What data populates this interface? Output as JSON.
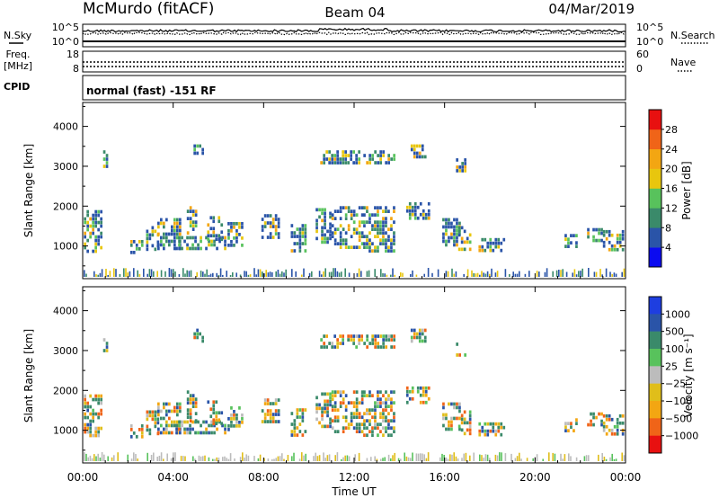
{
  "header": {
    "station": "McMurdo (fitACF)",
    "beam": "Beam 04",
    "date": "04/Mar/2019"
  },
  "noise_panel": {
    "left_label": "N.Sky",
    "right_label": "N.Search",
    "left_ticks": [
      "10^5",
      "10^0"
    ],
    "right_ticks": [
      "10^5",
      "10^0"
    ]
  },
  "freq_panel": {
    "left_label_1": "Freq.",
    "left_label_2": "[MHz]",
    "right_label": "Nave",
    "left_ticks": [
      "18",
      "8"
    ],
    "right_ticks": [
      "60",
      "0"
    ]
  },
  "cpid_panel": {
    "label": "CPID",
    "mode": "normal (fast) -151 RF"
  },
  "x_axis": {
    "label": "Time UT",
    "ticks": [
      "00:00",
      "04:00",
      "08:00",
      "12:00",
      "16:00",
      "20:00",
      "00:00"
    ]
  },
  "colors": {
    "scale_colors": [
      "#0b0bf0",
      "#2a54a8",
      "#3a8a6a",
      "#58c25c",
      "#e8c60e",
      "#f3a612",
      "#f06418",
      "#e81010"
    ],
    "velocity_colors": [
      "#e81010",
      "#f06418",
      "#f3a612",
      "#e0be1a",
      "#bcbcbc",
      "#58c25c",
      "#3a8a6a",
      "#2a54a8",
      "#1e3ee0"
    ]
  },
  "chart_data": [
    {
      "type": "heatmap",
      "title": "",
      "xlabel": "Time UT",
      "ylabel": "Slant Range [km]",
      "x_range_hours": [
        0,
        24
      ],
      "ylim": [
        180,
        4600
      ],
      "y_ticks": [
        1000,
        2000,
        3000,
        4000
      ],
      "colorbar": {
        "label": "Power [dB]",
        "ticks": [
          "4",
          "8",
          "12",
          "16",
          "20",
          "24",
          "28"
        ],
        "range": [
          0,
          32
        ]
      },
      "echo_regions": [
        {
          "t0": 0.05,
          "t1": 0.8,
          "r0": 850,
          "r1": 1900
        },
        {
          "t0": 2.1,
          "t1": 2.6,
          "r0": 850,
          "r1": 1150
        },
        {
          "t0": 2.8,
          "t1": 3.3,
          "r0": 950,
          "r1": 1500
        },
        {
          "t0": 3.3,
          "t1": 4.3,
          "r0": 900,
          "r1": 1700
        },
        {
          "t0": 4.1,
          "t1": 6.3,
          "r0": 950,
          "r1": 1250
        },
        {
          "t0": 4.6,
          "t1": 5.0,
          "r0": 1200,
          "r1": 2000
        },
        {
          "t0": 5.5,
          "t1": 6.2,
          "r0": 1150,
          "r1": 1750
        },
        {
          "t0": 6.4,
          "t1": 7.0,
          "r0": 1000,
          "r1": 1600
        },
        {
          "t0": 7.9,
          "t1": 8.7,
          "r0": 1250,
          "r1": 1800
        },
        {
          "t0": 9.2,
          "t1": 9.8,
          "r0": 900,
          "r1": 1550
        },
        {
          "t0": 10.3,
          "t1": 11.0,
          "r0": 1100,
          "r1": 1950
        },
        {
          "t0": 11.0,
          "t1": 12.4,
          "r0": 1000,
          "r1": 2000
        },
        {
          "t0": 12.4,
          "t1": 13.8,
          "r0": 850,
          "r1": 2000
        },
        {
          "t0": 14.3,
          "t1": 15.3,
          "r0": 1700,
          "r1": 2100
        },
        {
          "t0": 15.9,
          "t1": 16.7,
          "r0": 1050,
          "r1": 1700
        },
        {
          "t0": 16.6,
          "t1": 17.1,
          "r0": 950,
          "r1": 1500
        },
        {
          "t0": 17.5,
          "t1": 18.6,
          "r0": 850,
          "r1": 1200
        },
        {
          "t0": 21.3,
          "t1": 21.8,
          "r0": 950,
          "r1": 1300
        },
        {
          "t0": 22.3,
          "t1": 22.9,
          "r0": 1100,
          "r1": 1450
        },
        {
          "t0": 23.0,
          "t1": 23.9,
          "r0": 900,
          "r1": 1400
        },
        {
          "t0": 10.5,
          "t1": 13.8,
          "r0": 3100,
          "r1": 3400
        },
        {
          "t0": 14.5,
          "t1": 15.2,
          "r0": 3200,
          "r1": 3550
        },
        {
          "t0": 16.5,
          "t1": 16.9,
          "r0": 2900,
          "r1": 3200
        },
        {
          "t0": 0.9,
          "t1": 1.1,
          "r0": 3000,
          "r1": 3400
        },
        {
          "t0": 4.9,
          "t1": 5.3,
          "r0": 3250,
          "r1": 3550
        }
      ]
    },
    {
      "type": "heatmap",
      "title": "",
      "xlabel": "Time UT",
      "ylabel": "Slant Range [km]",
      "x_range_hours": [
        0,
        24
      ],
      "ylim": [
        180,
        4600
      ],
      "y_ticks": [
        1000,
        2000,
        3000,
        4000
      ],
      "colorbar": {
        "label": "Velocity [m s⁻¹]",
        "ticks": [
          "1000",
          "500",
          "100",
          "25",
          "−25",
          "−100",
          "−500",
          "−1000"
        ],
        "range": [
          -1000,
          1000
        ]
      },
      "echo_regions": [
        {
          "t0": 0.05,
          "t1": 0.8,
          "r0": 850,
          "r1": 1900
        },
        {
          "t0": 2.1,
          "t1": 2.6,
          "r0": 850,
          "r1": 1150
        },
        {
          "t0": 2.8,
          "t1": 3.3,
          "r0": 950,
          "r1": 1500
        },
        {
          "t0": 3.3,
          "t1": 4.3,
          "r0": 900,
          "r1": 1700
        },
        {
          "t0": 4.1,
          "t1": 6.3,
          "r0": 950,
          "r1": 1250
        },
        {
          "t0": 4.6,
          "t1": 5.0,
          "r0": 1200,
          "r1": 2000
        },
        {
          "t0": 5.5,
          "t1": 6.2,
          "r0": 1150,
          "r1": 1750
        },
        {
          "t0": 6.4,
          "t1": 7.0,
          "r0": 1000,
          "r1": 1600
        },
        {
          "t0": 7.9,
          "t1": 8.7,
          "r0": 1250,
          "r1": 1800
        },
        {
          "t0": 9.2,
          "t1": 9.8,
          "r0": 900,
          "r1": 1550
        },
        {
          "t0": 10.3,
          "t1": 11.0,
          "r0": 1100,
          "r1": 1950
        },
        {
          "t0": 11.0,
          "t1": 12.4,
          "r0": 1000,
          "r1": 2000
        },
        {
          "t0": 12.4,
          "t1": 13.8,
          "r0": 850,
          "r1": 2000
        },
        {
          "t0": 14.3,
          "t1": 15.3,
          "r0": 1700,
          "r1": 2100
        },
        {
          "t0": 15.9,
          "t1": 16.7,
          "r0": 1050,
          "r1": 1700
        },
        {
          "t0": 16.6,
          "t1": 17.1,
          "r0": 950,
          "r1": 1500
        },
        {
          "t0": 17.5,
          "t1": 18.6,
          "r0": 850,
          "r1": 1200
        },
        {
          "t0": 21.3,
          "t1": 21.8,
          "r0": 950,
          "r1": 1300
        },
        {
          "t0": 22.3,
          "t1": 22.9,
          "r0": 1100,
          "r1": 1450
        },
        {
          "t0": 23.0,
          "t1": 23.9,
          "r0": 900,
          "r1": 1400
        },
        {
          "t0": 10.5,
          "t1": 13.8,
          "r0": 3100,
          "r1": 3400
        },
        {
          "t0": 14.5,
          "t1": 15.2,
          "r0": 3200,
          "r1": 3550
        },
        {
          "t0": 16.5,
          "t1": 16.9,
          "r0": 2900,
          "r1": 3200
        },
        {
          "t0": 0.9,
          "t1": 1.1,
          "r0": 3000,
          "r1": 3400
        },
        {
          "t0": 4.9,
          "t1": 5.3,
          "r0": 3250,
          "r1": 3550
        }
      ]
    }
  ]
}
